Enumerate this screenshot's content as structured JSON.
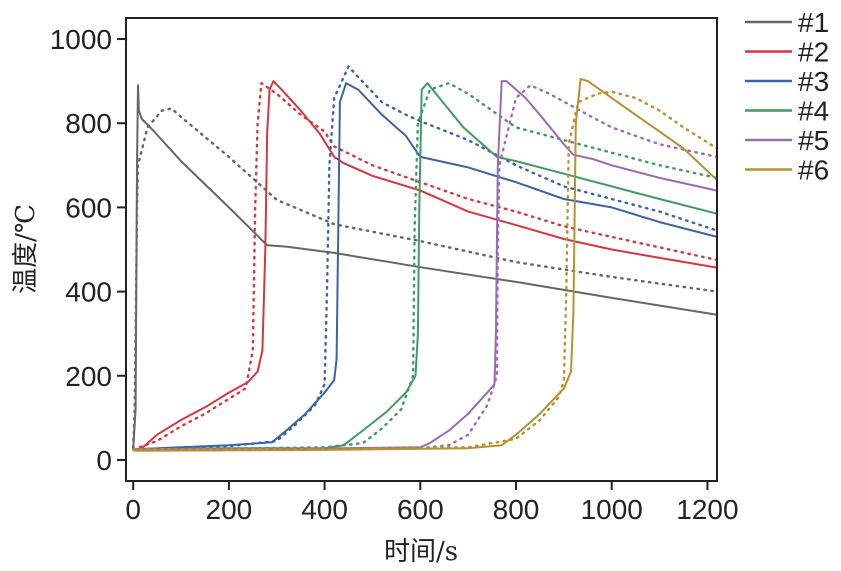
{
  "chart_data": {
    "type": "line",
    "xlabel": "时间/s",
    "ylabel": "温度/℃",
    "xlim": [
      -15,
      1220
    ],
    "ylim": [
      -50,
      1050
    ],
    "x_ticks": [
      0,
      200,
      400,
      600,
      800,
      1000,
      1200
    ],
    "y_ticks": [
      0,
      200,
      400,
      600,
      800,
      1000
    ],
    "legend_position": "outside-top-right",
    "series": [
      {
        "name": "#1",
        "color": "#666666",
        "solid": [
          [
            0,
            25
          ],
          [
            5,
            120
          ],
          [
            8,
            700
          ],
          [
            10,
            890
          ],
          [
            12,
            830
          ],
          [
            18,
            810
          ],
          [
            40,
            785
          ],
          [
            100,
            710
          ],
          [
            200,
            600
          ],
          [
            280,
            510
          ],
          [
            320,
            507
          ],
          [
            420,
            492
          ],
          [
            600,
            458
          ],
          [
            800,
            423
          ],
          [
            1000,
            385
          ],
          [
            1220,
            345
          ]
        ],
        "dotted": [
          [
            0,
            30
          ],
          [
            3,
            120
          ],
          [
            5,
            300
          ],
          [
            8,
            600
          ],
          [
            10,
            700
          ],
          [
            30,
            790
          ],
          [
            60,
            830
          ],
          [
            80,
            835
          ],
          [
            100,
            815
          ],
          [
            200,
            720
          ],
          [
            300,
            618
          ],
          [
            420,
            560
          ],
          [
            600,
            520
          ],
          [
            800,
            470
          ],
          [
            1000,
            435
          ],
          [
            1220,
            400
          ]
        ]
      },
      {
        "name": "#2",
        "color": "#d4373f",
        "solid": [
          [
            15,
            25
          ],
          [
            50,
            60
          ],
          [
            100,
            95
          ],
          [
            150,
            125
          ],
          [
            200,
            160
          ],
          [
            240,
            185
          ],
          [
            260,
            210
          ],
          [
            270,
            260
          ],
          [
            276,
            500
          ],
          [
            280,
            780
          ],
          [
            285,
            880
          ],
          [
            293,
            900
          ],
          [
            310,
            880
          ],
          [
            350,
            830
          ],
          [
            390,
            775
          ],
          [
            420,
            720
          ],
          [
            440,
            705
          ],
          [
            500,
            675
          ],
          [
            600,
            640
          ],
          [
            700,
            590
          ],
          [
            800,
            558
          ],
          [
            900,
            525
          ],
          [
            1000,
            500
          ],
          [
            1100,
            480
          ],
          [
            1220,
            457
          ]
        ],
        "dotted": [
          [
            0,
            25
          ],
          [
            50,
            45
          ],
          [
            100,
            80
          ],
          [
            150,
            110
          ],
          [
            200,
            145
          ],
          [
            235,
            170
          ],
          [
            250,
            260
          ],
          [
            255,
            600
          ],
          [
            260,
            800
          ],
          [
            268,
            895
          ],
          [
            300,
            870
          ],
          [
            350,
            820
          ],
          [
            400,
            780
          ],
          [
            420,
            745
          ],
          [
            500,
            700
          ],
          [
            600,
            660
          ],
          [
            700,
            620
          ],
          [
            800,
            590
          ],
          [
            900,
            555
          ],
          [
            1000,
            530
          ],
          [
            1100,
            505
          ],
          [
            1220,
            475
          ]
        ]
      },
      {
        "name": "#3",
        "color": "#3a63a8",
        "solid": [
          [
            0,
            25
          ],
          [
            100,
            30
          ],
          [
            200,
            35
          ],
          [
            290,
            42
          ],
          [
            320,
            70
          ],
          [
            360,
            110
          ],
          [
            400,
            160
          ],
          [
            420,
            190
          ],
          [
            425,
            240
          ],
          [
            428,
            500
          ],
          [
            432,
            850
          ],
          [
            445,
            895
          ],
          [
            470,
            880
          ],
          [
            520,
            820
          ],
          [
            570,
            770
          ],
          [
            600,
            720
          ],
          [
            700,
            695
          ],
          [
            800,
            660
          ],
          [
            900,
            620
          ],
          [
            1000,
            600
          ],
          [
            1100,
            565
          ],
          [
            1220,
            530
          ]
        ],
        "dotted": [
          [
            0,
            25
          ],
          [
            100,
            28
          ],
          [
            200,
            33
          ],
          [
            300,
            45
          ],
          [
            340,
            85
          ],
          [
            380,
            130
          ],
          [
            400,
            180
          ],
          [
            405,
            400
          ],
          [
            410,
            700
          ],
          [
            420,
            860
          ],
          [
            450,
            935
          ],
          [
            470,
            910
          ],
          [
            520,
            850
          ],
          [
            570,
            820
          ],
          [
            600,
            805
          ],
          [
            700,
            760
          ],
          [
            800,
            700
          ],
          [
            900,
            650
          ],
          [
            1000,
            620
          ],
          [
            1100,
            590
          ],
          [
            1220,
            545
          ]
        ]
      },
      {
        "name": "#4",
        "color": "#3f9b62",
        "solid": [
          [
            0,
            25
          ],
          [
            200,
            28
          ],
          [
            400,
            28
          ],
          [
            440,
            35
          ],
          [
            480,
            70
          ],
          [
            530,
            115
          ],
          [
            570,
            160
          ],
          [
            590,
            200
          ],
          [
            595,
            300
          ],
          [
            598,
            600
          ],
          [
            603,
            880
          ],
          [
            615,
            895
          ],
          [
            640,
            860
          ],
          [
            690,
            790
          ],
          [
            740,
            740
          ],
          [
            760,
            720
          ],
          [
            800,
            710
          ],
          [
            900,
            680
          ],
          [
            1000,
            650
          ],
          [
            1100,
            620
          ],
          [
            1220,
            585
          ]
        ],
        "dotted": [
          [
            0,
            25
          ],
          [
            200,
            27
          ],
          [
            400,
            30
          ],
          [
            480,
            40
          ],
          [
            520,
            75
          ],
          [
            560,
            120
          ],
          [
            585,
            200
          ],
          [
            588,
            550
          ],
          [
            595,
            800
          ],
          [
            620,
            880
          ],
          [
            660,
            895
          ],
          [
            700,
            870
          ],
          [
            750,
            830
          ],
          [
            800,
            790
          ],
          [
            900,
            760
          ],
          [
            1000,
            730
          ],
          [
            1100,
            700
          ],
          [
            1220,
            670
          ]
        ]
      },
      {
        "name": "#5",
        "color": "#9a6bb4",
        "solid": [
          [
            0,
            25
          ],
          [
            300,
            26
          ],
          [
            600,
            30
          ],
          [
            620,
            40
          ],
          [
            660,
            70
          ],
          [
            700,
            110
          ],
          [
            740,
            160
          ],
          [
            755,
            180
          ],
          [
            758,
            300
          ],
          [
            762,
            700
          ],
          [
            770,
            900
          ],
          [
            780,
            900
          ],
          [
            820,
            860
          ],
          [
            850,
            820
          ],
          [
            900,
            750
          ],
          [
            920,
            725
          ],
          [
            960,
            715
          ],
          [
            1000,
            700
          ],
          [
            1100,
            670
          ],
          [
            1220,
            640
          ]
        ],
        "dotted": [
          [
            0,
            25
          ],
          [
            300,
            26
          ],
          [
            600,
            28
          ],
          [
            660,
            35
          ],
          [
            700,
            60
          ],
          [
            740,
            130
          ],
          [
            760,
            200
          ],
          [
            762,
            500
          ],
          [
            765,
            700
          ],
          [
            800,
            860
          ],
          [
            830,
            890
          ],
          [
            870,
            870
          ],
          [
            950,
            820
          ],
          [
            1000,
            790
          ],
          [
            1100,
            750
          ],
          [
            1220,
            720
          ]
        ]
      },
      {
        "name": "#6",
        "color": "#b8902f",
        "solid": [
          [
            0,
            22
          ],
          [
            400,
            24
          ],
          [
            700,
            28
          ],
          [
            770,
            35
          ],
          [
            800,
            60
          ],
          [
            850,
            110
          ],
          [
            900,
            170
          ],
          [
            915,
            210
          ],
          [
            920,
            350
          ],
          [
            925,
            800
          ],
          [
            935,
            905
          ],
          [
            950,
            900
          ],
          [
            1000,
            860
          ],
          [
            1050,
            820
          ],
          [
            1100,
            780
          ],
          [
            1150,
            740
          ],
          [
            1220,
            665
          ]
        ],
        "dotted": [
          [
            0,
            25
          ],
          [
            400,
            26
          ],
          [
            700,
            30
          ],
          [
            800,
            50
          ],
          [
            850,
            95
          ],
          [
            890,
            150
          ],
          [
            900,
            190
          ],
          [
            905,
            400
          ],
          [
            910,
            750
          ],
          [
            930,
            850
          ],
          [
            970,
            870
          ],
          [
            1000,
            875
          ],
          [
            1050,
            860
          ],
          [
            1100,
            830
          ],
          [
            1150,
            790
          ],
          [
            1220,
            740
          ]
        ]
      }
    ]
  }
}
